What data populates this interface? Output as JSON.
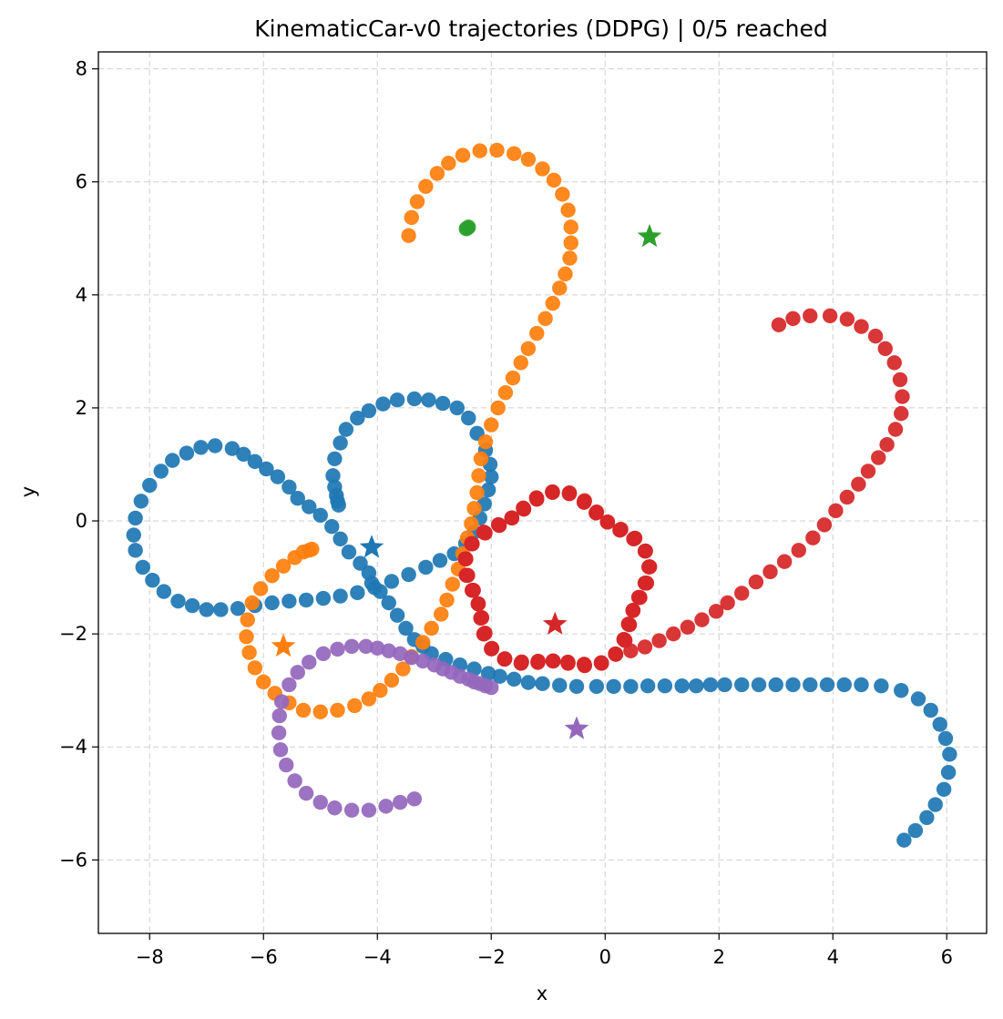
{
  "chart_data": {
    "type": "scatter",
    "title": "KinematicCar-v0 trajectories (DDPG) | 0/5 reached",
    "xlabel": "x",
    "ylabel": "y",
    "xlim": [
      -8.9,
      6.7
    ],
    "ylim": [
      -7.3,
      8.3
    ],
    "xticks": [
      -8,
      -6,
      -4,
      -2,
      0,
      2,
      4,
      6
    ],
    "yticks": [
      -6,
      -4,
      -2,
      0,
      2,
      4,
      6,
      8
    ],
    "grid": true,
    "series": [
      {
        "color": "#1f77b4",
        "goal": [
          -4.1,
          -0.47
        ],
        "points": [
          [
            5.25,
            -5.65
          ],
          [
            5.45,
            -5.48
          ],
          [
            5.65,
            -5.25
          ],
          [
            5.8,
            -5.02
          ],
          [
            5.95,
            -4.75
          ],
          [
            6.03,
            -4.45
          ],
          [
            6.05,
            -4.13
          ],
          [
            5.98,
            -3.85
          ],
          [
            5.88,
            -3.6
          ],
          [
            5.72,
            -3.35
          ],
          [
            5.5,
            -3.15
          ],
          [
            5.2,
            -3.0
          ],
          [
            4.85,
            -2.92
          ],
          [
            4.5,
            -2.9
          ],
          [
            4.2,
            -2.9
          ],
          [
            3.9,
            -2.9
          ],
          [
            3.6,
            -2.9
          ],
          [
            3.3,
            -2.9
          ],
          [
            3.0,
            -2.9
          ],
          [
            2.7,
            -2.9
          ],
          [
            2.4,
            -2.9
          ],
          [
            2.1,
            -2.9
          ],
          [
            1.85,
            -2.9
          ],
          [
            1.6,
            -2.92
          ],
          [
            1.35,
            -2.92
          ],
          [
            1.05,
            -2.92
          ],
          [
            0.75,
            -2.92
          ],
          [
            0.45,
            -2.93
          ],
          [
            0.15,
            -2.93
          ],
          [
            -0.15,
            -2.93
          ],
          [
            -0.5,
            -2.93
          ],
          [
            -0.8,
            -2.91
          ],
          [
            -1.1,
            -2.88
          ],
          [
            -1.35,
            -2.86
          ],
          [
            -1.6,
            -2.8
          ],
          [
            -1.85,
            -2.75
          ],
          [
            -2.05,
            -2.7
          ],
          [
            -2.3,
            -2.62
          ],
          [
            -2.55,
            -2.55
          ],
          [
            -2.8,
            -2.45
          ],
          [
            -3.05,
            -2.35
          ],
          [
            -3.2,
            -2.22
          ],
          [
            -3.35,
            -2.1
          ],
          [
            -3.5,
            -1.9
          ],
          [
            -3.65,
            -1.67
          ],
          [
            -3.8,
            -1.45
          ],
          [
            -3.95,
            -1.25
          ],
          [
            -4.1,
            -1.1
          ],
          [
            -4.15,
            -0.92
          ],
          [
            -4.3,
            -0.75
          ],
          [
            -4.5,
            -0.55
          ],
          [
            -4.65,
            -0.32
          ],
          [
            -4.8,
            -0.1
          ],
          [
            -5.0,
            0.1
          ],
          [
            -5.2,
            0.25
          ],
          [
            -5.4,
            0.4
          ],
          [
            -5.55,
            0.6
          ],
          [
            -5.75,
            0.78
          ],
          [
            -5.95,
            0.92
          ],
          [
            -6.15,
            1.05
          ],
          [
            -6.35,
            1.18
          ],
          [
            -6.55,
            1.28
          ],
          [
            -6.85,
            1.33
          ],
          [
            -7.1,
            1.3
          ],
          [
            -7.35,
            1.2
          ],
          [
            -7.6,
            1.07
          ],
          [
            -7.8,
            0.88
          ],
          [
            -8.0,
            0.63
          ],
          [
            -8.15,
            0.35
          ],
          [
            -8.25,
            0.05
          ],
          [
            -8.28,
            -0.25
          ],
          [
            -8.25,
            -0.52
          ],
          [
            -8.12,
            -0.82
          ],
          [
            -7.95,
            -1.05
          ],
          [
            -7.75,
            -1.25
          ],
          [
            -7.5,
            -1.42
          ],
          [
            -7.25,
            -1.5
          ],
          [
            -7.0,
            -1.57
          ],
          [
            -6.75,
            -1.57
          ],
          [
            -6.45,
            -1.55
          ],
          [
            -6.15,
            -1.5
          ],
          [
            -5.85,
            -1.45
          ],
          [
            -5.55,
            -1.42
          ],
          [
            -5.25,
            -1.4
          ],
          [
            -4.95,
            -1.37
          ],
          [
            -4.65,
            -1.33
          ],
          [
            -4.35,
            -1.27
          ],
          [
            -4.05,
            -1.18
          ],
          [
            -3.75,
            -1.07
          ],
          [
            -3.45,
            -0.95
          ],
          [
            -3.15,
            -0.82
          ],
          [
            -2.9,
            -0.7
          ],
          [
            -2.65,
            -0.58
          ],
          [
            -2.45,
            -0.4
          ],
          [
            -2.3,
            -0.2
          ],
          [
            -2.2,
            0.05
          ],
          [
            -2.12,
            0.3
          ],
          [
            -2.05,
            0.55
          ],
          [
            -2.0,
            0.78
          ],
          [
            -2.02,
            1.0
          ],
          [
            -2.1,
            1.25
          ],
          [
            -2.25,
            1.55
          ],
          [
            -2.4,
            1.82
          ],
          [
            -2.6,
            2.0
          ],
          [
            -2.85,
            2.08
          ],
          [
            -3.1,
            2.14
          ],
          [
            -3.35,
            2.16
          ],
          [
            -3.65,
            2.14
          ],
          [
            -3.9,
            2.07
          ],
          [
            -4.15,
            1.95
          ],
          [
            -4.35,
            1.82
          ],
          [
            -4.55,
            1.62
          ],
          [
            -4.65,
            1.38
          ],
          [
            -4.75,
            1.1
          ],
          [
            -4.78,
            0.8
          ],
          [
            -4.75,
            0.6
          ],
          [
            -4.72,
            0.45
          ],
          [
            -4.7,
            0.35
          ],
          [
            -4.68,
            0.28
          ]
        ]
      },
      {
        "color": "#ff7f0e",
        "goal": [
          -5.65,
          -2.22
        ],
        "points": [
          [
            -3.45,
            5.05
          ],
          [
            -3.4,
            5.37
          ],
          [
            -3.3,
            5.65
          ],
          [
            -3.15,
            5.92
          ],
          [
            -2.95,
            6.15
          ],
          [
            -2.75,
            6.33
          ],
          [
            -2.5,
            6.47
          ],
          [
            -2.2,
            6.55
          ],
          [
            -1.9,
            6.56
          ],
          [
            -1.6,
            6.5
          ],
          [
            -1.35,
            6.4
          ],
          [
            -1.1,
            6.23
          ],
          [
            -0.9,
            6.03
          ],
          [
            -0.75,
            5.78
          ],
          [
            -0.65,
            5.5
          ],
          [
            -0.6,
            5.2
          ],
          [
            -0.6,
            4.92
          ],
          [
            -0.62,
            4.65
          ],
          [
            -0.7,
            4.37
          ],
          [
            -0.8,
            4.12
          ],
          [
            -0.92,
            3.85
          ],
          [
            -1.05,
            3.58
          ],
          [
            -1.2,
            3.32
          ],
          [
            -1.35,
            3.05
          ],
          [
            -1.48,
            2.8
          ],
          [
            -1.62,
            2.53
          ],
          [
            -1.75,
            2.27
          ],
          [
            -1.88,
            2.0
          ],
          [
            -2.0,
            1.7
          ],
          [
            -2.1,
            1.4
          ],
          [
            -2.18,
            1.1
          ],
          [
            -2.22,
            0.8
          ],
          [
            -2.25,
            0.5
          ],
          [
            -2.3,
            0.22
          ],
          [
            -2.35,
            -0.05
          ],
          [
            -2.42,
            -0.3
          ],
          [
            -2.5,
            -0.58
          ],
          [
            -2.58,
            -0.85
          ],
          [
            -2.68,
            -1.12
          ],
          [
            -2.78,
            -1.4
          ],
          [
            -2.88,
            -1.65
          ],
          [
            -3.05,
            -1.9
          ],
          [
            -3.2,
            -2.15
          ],
          [
            -3.4,
            -2.4
          ],
          [
            -3.55,
            -2.62
          ],
          [
            -3.75,
            -2.82
          ],
          [
            -3.95,
            -3.0
          ],
          [
            -4.15,
            -3.15
          ],
          [
            -4.4,
            -3.27
          ],
          [
            -4.7,
            -3.35
          ],
          [
            -5.0,
            -3.38
          ],
          [
            -5.3,
            -3.35
          ],
          [
            -5.55,
            -3.22
          ],
          [
            -5.8,
            -3.05
          ],
          [
            -6.0,
            -2.85
          ],
          [
            -6.15,
            -2.6
          ],
          [
            -6.25,
            -2.33
          ],
          [
            -6.3,
            -2.05
          ],
          [
            -6.28,
            -1.75
          ],
          [
            -6.2,
            -1.45
          ],
          [
            -6.05,
            -1.2
          ],
          [
            -5.85,
            -0.97
          ],
          [
            -5.65,
            -0.8
          ],
          [
            -5.45,
            -0.65
          ],
          [
            -5.3,
            -0.55
          ],
          [
            -5.2,
            -0.52
          ],
          [
            -5.15,
            -0.5
          ]
        ]
      },
      {
        "color": "#2ca02c",
        "goal": [
          0.78,
          5.03
        ],
        "points": [
          [
            -2.42,
            5.18
          ],
          [
            -2.4,
            5.2
          ],
          [
            -2.44,
            5.17
          ]
        ]
      },
      {
        "color": "#d62728",
        "goal": [
          -0.88,
          -1.83
        ],
        "points": [
          [
            3.05,
            3.47
          ],
          [
            3.3,
            3.58
          ],
          [
            3.6,
            3.63
          ],
          [
            3.95,
            3.63
          ],
          [
            4.25,
            3.57
          ],
          [
            4.5,
            3.44
          ],
          [
            4.75,
            3.27
          ],
          [
            4.92,
            3.05
          ],
          [
            5.08,
            2.8
          ],
          [
            5.18,
            2.5
          ],
          [
            5.22,
            2.2
          ],
          [
            5.2,
            1.9
          ],
          [
            5.1,
            1.62
          ],
          [
            4.95,
            1.35
          ],
          [
            4.8,
            1.12
          ],
          [
            4.62,
            0.88
          ],
          [
            4.45,
            0.65
          ],
          [
            4.25,
            0.42
          ],
          [
            4.05,
            0.18
          ],
          [
            3.85,
            -0.07
          ],
          [
            3.65,
            -0.3
          ],
          [
            3.4,
            -0.52
          ],
          [
            3.15,
            -0.72
          ],
          [
            2.9,
            -0.9
          ],
          [
            2.65,
            -1.08
          ],
          [
            2.4,
            -1.28
          ],
          [
            2.15,
            -1.45
          ],
          [
            1.95,
            -1.6
          ],
          [
            1.7,
            -1.75
          ],
          [
            1.45,
            -1.88
          ],
          [
            1.2,
            -2.0
          ],
          [
            0.95,
            -2.12
          ],
          [
            0.7,
            -2.23
          ],
          [
            0.45,
            -2.3
          ]
        ],
        "loop": {
          "center": [
            -0.85,
            -1.1
          ],
          "rx": 1.55,
          "ry": 1.5,
          "count": 140
        }
      },
      {
        "color": "#9467bd",
        "goal": [
          -0.5,
          -3.68
        ],
        "points": [
          [
            -2.0,
            -2.95
          ],
          [
            -2.1,
            -2.92
          ],
          [
            -2.2,
            -2.88
          ],
          [
            -2.3,
            -2.85
          ],
          [
            -2.4,
            -2.8
          ],
          [
            -2.55,
            -2.75
          ],
          [
            -2.7,
            -2.68
          ],
          [
            -2.85,
            -2.62
          ],
          [
            -3.0,
            -2.55
          ],
          [
            -3.2,
            -2.48
          ],
          [
            -3.4,
            -2.42
          ],
          [
            -3.6,
            -2.35
          ],
          [
            -3.8,
            -2.3
          ],
          [
            -4.0,
            -2.25
          ],
          [
            -4.2,
            -2.22
          ],
          [
            -4.45,
            -2.22
          ],
          [
            -4.7,
            -2.27
          ],
          [
            -4.95,
            -2.35
          ],
          [
            -5.2,
            -2.5
          ],
          [
            -5.4,
            -2.68
          ],
          [
            -5.55,
            -2.9
          ],
          [
            -5.68,
            -3.2
          ],
          [
            -5.72,
            -3.45
          ],
          [
            -5.73,
            -3.75
          ],
          [
            -5.7,
            -4.05
          ],
          [
            -5.6,
            -4.32
          ],
          [
            -5.45,
            -4.6
          ],
          [
            -5.25,
            -4.82
          ],
          [
            -5.0,
            -4.98
          ],
          [
            -4.75,
            -5.08
          ],
          [
            -4.45,
            -5.12
          ],
          [
            -4.15,
            -5.12
          ],
          [
            -3.85,
            -5.05
          ],
          [
            -3.6,
            -4.98
          ],
          [
            -3.35,
            -4.92
          ]
        ]
      }
    ]
  }
}
